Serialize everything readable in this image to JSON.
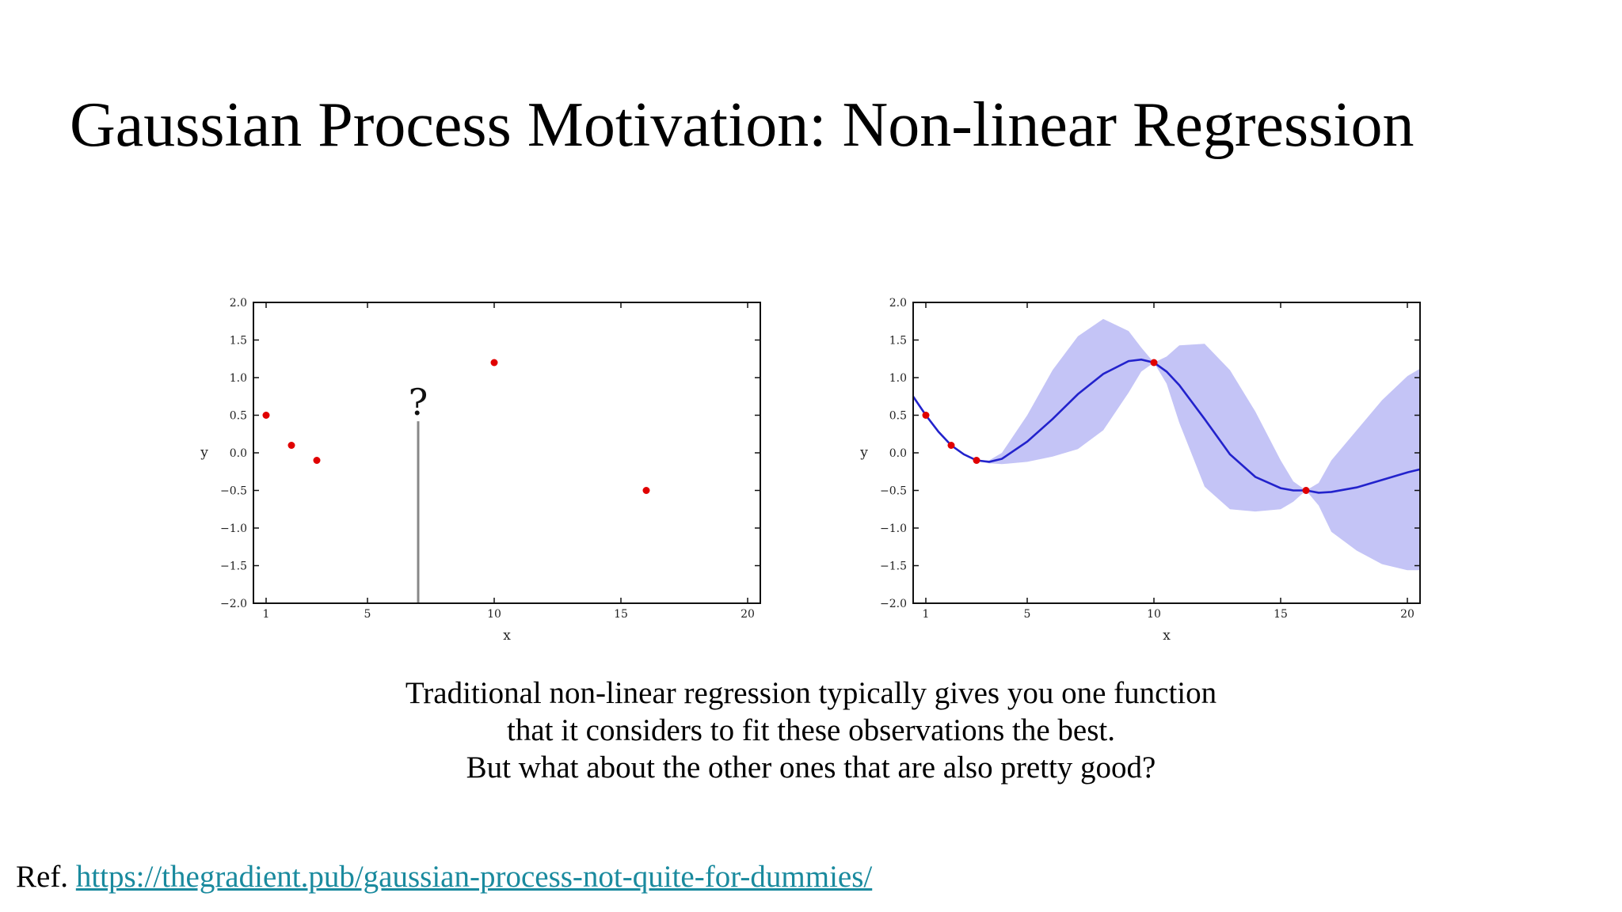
{
  "slide": {
    "title": "Gaussian Process Motivation: Non-linear Regression",
    "caption_lines": [
      "Traditional non-linear regression typically gives you one function",
      "that it considers to fit these observations the best.",
      "But what about the other ones that are also pretty good?"
    ],
    "reference_prefix": "Ref.",
    "reference_link": "https://thegradient.pub/gaussian-process-not-quite-for-dummies/"
  },
  "colors": {
    "point": "#e00000",
    "mean_line": "#2222cc",
    "band": "#c4c4f6",
    "query_line": "#888888",
    "link": "#1a8a9e"
  },
  "chart_data": [
    {
      "type": "scatter",
      "xlabel": "x",
      "ylabel": "y",
      "xlim": [
        0.5,
        20.5
      ],
      "ylim": [
        -2.0,
        2.0
      ],
      "xticks": [
        1,
        5,
        10,
        15,
        20
      ],
      "yticks": [
        -2.0,
        -1.5,
        -1.0,
        -0.5,
        0.0,
        0.5,
        1.0,
        1.5,
        2.0
      ],
      "ytick_labels": [
        "−2.0",
        "−1.5",
        "−1.0",
        "−0.5",
        "0.0",
        "0.5",
        "1.0",
        "1.5",
        "2.0"
      ],
      "grid": false,
      "points": [
        {
          "x": 1,
          "y": 0.5
        },
        {
          "x": 2,
          "y": 0.1
        },
        {
          "x": 3,
          "y": -0.1
        },
        {
          "x": 10,
          "y": 1.2
        },
        {
          "x": 16,
          "y": -0.5
        }
      ],
      "query": {
        "x": 7,
        "y_top": 0.42,
        "label": "?"
      }
    },
    {
      "type": "line",
      "xlabel": "x",
      "ylabel": "y",
      "xlim": [
        0.5,
        20.5
      ],
      "ylim": [
        -2.0,
        2.0
      ],
      "xticks": [
        1,
        5,
        10,
        15,
        20
      ],
      "yticks": [
        -2.0,
        -1.5,
        -1.0,
        -0.5,
        0.0,
        0.5,
        1.0,
        1.5,
        2.0
      ],
      "ytick_labels": [
        "−2.0",
        "−1.5",
        "−1.0",
        "−0.5",
        "0.0",
        "0.5",
        "1.0",
        "1.5",
        "2.0"
      ],
      "grid": false,
      "points": [
        {
          "x": 1,
          "y": 0.5
        },
        {
          "x": 2,
          "y": 0.1
        },
        {
          "x": 3,
          "y": -0.1
        },
        {
          "x": 10,
          "y": 1.2
        },
        {
          "x": 16,
          "y": -0.5
        }
      ],
      "mean": {
        "x": [
          0.5,
          1,
          1.5,
          2,
          2.5,
          3,
          3.5,
          4,
          5,
          6,
          7,
          8,
          9,
          9.5,
          10,
          10.5,
          11,
          12,
          13,
          14,
          15,
          15.5,
          16,
          16.5,
          17,
          18,
          19,
          20,
          20.5
        ],
        "y": [
          0.75,
          0.5,
          0.28,
          0.1,
          -0.02,
          -0.1,
          -0.12,
          -0.08,
          0.15,
          0.45,
          0.78,
          1.05,
          1.22,
          1.24,
          1.2,
          1.08,
          0.9,
          0.45,
          -0.02,
          -0.32,
          -0.47,
          -0.5,
          -0.5,
          -0.53,
          -0.52,
          -0.46,
          -0.36,
          -0.26,
          -0.22
        ]
      },
      "band_upper": [
        0.75,
        0.5,
        0.28,
        0.1,
        -0.02,
        -0.1,
        -0.1,
        0.0,
        0.5,
        1.1,
        1.55,
        1.78,
        1.62,
        1.4,
        1.2,
        1.28,
        1.43,
        1.45,
        1.1,
        0.55,
        -0.1,
        -0.38,
        -0.5,
        -0.4,
        -0.1,
        0.3,
        0.7,
        1.02,
        1.12
      ],
      "band_lower": [
        0.75,
        0.5,
        0.28,
        0.1,
        -0.02,
        -0.1,
        -0.14,
        -0.15,
        -0.12,
        -0.05,
        0.05,
        0.3,
        0.8,
        1.08,
        1.2,
        0.92,
        0.4,
        -0.45,
        -0.75,
        -0.78,
        -0.75,
        -0.65,
        -0.5,
        -0.7,
        -1.05,
        -1.3,
        -1.48,
        -1.56,
        -1.56
      ]
    }
  ]
}
